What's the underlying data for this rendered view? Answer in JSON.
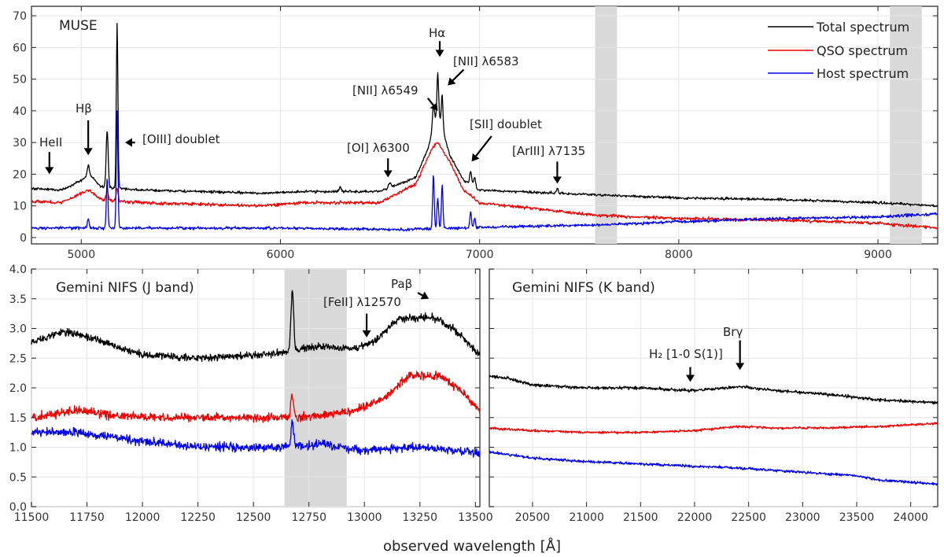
{
  "xlabel": "observed wavelength [Å]",
  "colors": {
    "total": "#000000",
    "qso": "#ee0000",
    "host": "#0000ee",
    "shade": "#d9d9d9",
    "grid": "#ffffff",
    "bg": "#ffffff"
  },
  "chart_data": [
    {
      "id": "muse",
      "type": "line",
      "title": "MUSE",
      "xlim": [
        4750,
        9300
      ],
      "ylim": [
        -2,
        73
      ],
      "xticks": [
        5000,
        6000,
        7000,
        8000,
        9000
      ],
      "yticks": [
        0,
        10,
        20,
        30,
        40,
        50,
        60,
        70
      ],
      "shaded": [
        [
          7580,
          7690
        ],
        [
          9060,
          9220
        ]
      ],
      "legend": {
        "position": "top-right",
        "entries": [
          {
            "key": "total",
            "label": "Total spectrum"
          },
          {
            "key": "qso",
            "label": "QSO spectrum"
          },
          {
            "key": "host",
            "label": "Host spectrum"
          }
        ]
      },
      "series": [
        {
          "name": "Total spectrum",
          "key": "total",
          "anchors": [
            [
              4750,
              15.5
            ],
            [
              4900,
              15
            ],
            [
              5000,
              18
            ],
            [
              5040,
              20
            ],
            [
              5100,
              16
            ],
            [
              5300,
              15
            ],
            [
              5900,
              14
            ],
            [
              6100,
              14.5
            ],
            [
              6500,
              14.5
            ],
            [
              6680,
              19
            ],
            [
              6740,
              28
            ],
            [
              6790,
              40
            ],
            [
              6850,
              26
            ],
            [
              6920,
              18
            ],
            [
              7000,
              15
            ],
            [
              7600,
              13.5
            ],
            [
              8000,
              12.5
            ],
            [
              8500,
              12
            ],
            [
              9000,
              11
            ],
            [
              9300,
              10
            ]
          ],
          "lines": [
            [
              5035,
              3,
              5
            ],
            [
              5130,
              18,
              5
            ],
            [
              5180,
              52,
              4
            ],
            [
              6300,
              1.5,
              6
            ],
            [
              6549,
              1.5,
              6
            ],
            [
              6768,
              7,
              5
            ],
            [
              6790,
              12,
              4
            ],
            [
              6812,
              10,
              4
            ],
            [
              6955,
              4,
              5
            ],
            [
              6975,
              3,
              5
            ],
            [
              7390,
              1.5,
              5
            ]
          ],
          "noise": 0.4
        },
        {
          "name": "QSO spectrum",
          "key": "qso",
          "anchors": [
            [
              4750,
              11.5
            ],
            [
              4900,
              11
            ],
            [
              5000,
              14
            ],
            [
              5040,
              15
            ],
            [
              5100,
              12
            ],
            [
              5300,
              11
            ],
            [
              5900,
              10
            ],
            [
              6100,
              11
            ],
            [
              6500,
              11
            ],
            [
              6680,
              17
            ],
            [
              6760,
              28
            ],
            [
              6790,
              30
            ],
            [
              6850,
              24
            ],
            [
              6920,
              15
            ],
            [
              7000,
              11
            ],
            [
              7600,
              7
            ],
            [
              8000,
              6
            ],
            [
              8500,
              5.5
            ],
            [
              9000,
              4.5
            ],
            [
              9300,
              3
            ]
          ],
          "lines": [
            [
              5130,
              3,
              5
            ],
            [
              5180,
              4,
              5
            ]
          ],
          "noise": 0.5
        },
        {
          "name": "Host spectrum",
          "key": "host",
          "anchors": [
            [
              4750,
              3
            ],
            [
              5300,
              3
            ],
            [
              6000,
              3
            ],
            [
              6600,
              2.5
            ],
            [
              7200,
              3.5
            ],
            [
              7600,
              4
            ],
            [
              8000,
              5
            ],
            [
              8500,
              6
            ],
            [
              9000,
              6.5
            ],
            [
              9300,
              7.5
            ]
          ],
          "lines": [
            [
              5035,
              3,
              4
            ],
            [
              5130,
              16,
              4
            ],
            [
              5180,
              37,
              4
            ],
            [
              6768,
              17,
              4
            ],
            [
              6790,
              10,
              4
            ],
            [
              6812,
              14,
              4
            ],
            [
              6955,
              5,
              4
            ],
            [
              6975,
              3,
              4
            ]
          ],
          "noise": 0.45
        }
      ],
      "annotations": [
        {
          "text": "MUSE",
          "x": 4830,
          "y": 68,
          "role": "title"
        },
        {
          "text": "HeII",
          "x": 4800,
          "y": 30
        },
        {
          "text": "Hβ",
          "x": 5030,
          "y": 40
        },
        {
          "text": "[OIII] doublet",
          "x": 5290,
          "y": 30
        },
        {
          "text": "[OI] λ6300",
          "x": 6450,
          "y": 27
        },
        {
          "text": "Hα",
          "x": 6795,
          "y": 64
        },
        {
          "text": "[NII] λ6549",
          "x": 6560,
          "y": 46
        },
        {
          "text": "[NII] λ6583",
          "x": 6850,
          "y": 56
        },
        {
          "text": "[SII] doublet",
          "x": 6940,
          "y": 34
        },
        {
          "text": "[ArIII] λ7135",
          "x": 7180,
          "y": 27
        }
      ],
      "arrows": [
        {
          "from": [
            4840,
            27
          ],
          "to": [
            4840,
            20
          ],
          "label": "HeII"
        },
        {
          "from": [
            5035,
            37
          ],
          "to": [
            5035,
            26
          ],
          "label": "Hβ"
        },
        {
          "from": [
            5270,
            30
          ],
          "to": [
            5220,
            30
          ],
          "label": "[OIII] doublet"
        },
        {
          "from": [
            6540,
            25
          ],
          "to": [
            6540,
            19
          ],
          "label": "[OI] λ6300"
        },
        {
          "from": [
            6800,
            62
          ],
          "to": [
            6800,
            57
          ],
          "label": "Hα"
        },
        {
          "from": [
            6740,
            44
          ],
          "to": [
            6790,
            40
          ],
          "label": "[NII] λ6549"
        },
        {
          "from": [
            6920,
            53
          ],
          "to": [
            6840,
            48
          ],
          "label": "[NII] λ6583"
        },
        {
          "from": [
            7060,
            32
          ],
          "to": [
            6960,
            24
          ],
          "label": "[SII] doublet"
        },
        {
          "from": [
            7390,
            24
          ],
          "to": [
            7390,
            17
          ],
          "label": "[ArIII] λ7135"
        }
      ]
    },
    {
      "id": "nifs_j",
      "type": "line",
      "title": "Gemini NIFS (J band)",
      "xlim": [
        11500,
        13520
      ],
      "ylim": [
        0,
        4
      ],
      "xticks": [
        11500,
        11750,
        12000,
        12250,
        12500,
        12750,
        13000,
        13250,
        13500
      ],
      "yticks": [
        0.0,
        0.5,
        1.0,
        1.5,
        2.0,
        2.5,
        3.0,
        3.5,
        4.0
      ],
      "shaded": [
        [
          12640,
          12920
        ]
      ],
      "series": [
        {
          "name": "Total spectrum",
          "key": "total",
          "anchors": [
            [
              11500,
              2.78
            ],
            [
              11650,
              2.95
            ],
            [
              11800,
              2.8
            ],
            [
              12000,
              2.55
            ],
            [
              12250,
              2.5
            ],
            [
              12500,
              2.55
            ],
            [
              12650,
              2.6
            ],
            [
              12800,
              2.7
            ],
            [
              12950,
              2.65
            ],
            [
              13050,
              2.8
            ],
            [
              13150,
              3.15
            ],
            [
              13300,
              3.2
            ],
            [
              13400,
              3.0
            ],
            [
              13520,
              2.55
            ]
          ],
          "lines": [
            [
              12675,
              1.0,
              6
            ]
          ],
          "noise": 0.06
        },
        {
          "name": "QSO spectrum",
          "key": "qso",
          "anchors": [
            [
              11500,
              1.5
            ],
            [
              11700,
              1.62
            ],
            [
              11900,
              1.52
            ],
            [
              12250,
              1.5
            ],
            [
              12700,
              1.5
            ],
            [
              12950,
              1.6
            ],
            [
              13100,
              1.85
            ],
            [
              13200,
              2.2
            ],
            [
              13350,
              2.2
            ],
            [
              13450,
              1.9
            ],
            [
              13520,
              1.6
            ]
          ],
          "lines": [
            [
              12675,
              0.4,
              6
            ]
          ],
          "noise": 0.07
        },
        {
          "name": "Host spectrum",
          "key": "host",
          "anchors": [
            [
              11500,
              1.25
            ],
            [
              11700,
              1.25
            ],
            [
              11900,
              1.15
            ],
            [
              12250,
              1.0
            ],
            [
              12600,
              1.0
            ],
            [
              12800,
              1.05
            ],
            [
              13000,
              0.95
            ],
            [
              13250,
              1.0
            ],
            [
              13520,
              0.9
            ]
          ],
          "lines": [
            [
              12675,
              0.4,
              6
            ]
          ],
          "noise": 0.07
        }
      ],
      "annotations": [
        {
          "text": "Gemini NIFS (J band)",
          "role": "title"
        },
        {
          "text": "Paβ",
          "x": 13180,
          "y": 3.75
        },
        {
          "text": "[FeII] λ12570",
          "x": 12500,
          "y": 3.4
        }
      ],
      "arrows": [
        {
          "from": [
            13240,
            3.6
          ],
          "to": [
            13290,
            3.5
          ],
          "label": "Paβ"
        },
        {
          "from": [
            13010,
            3.25
          ],
          "to": [
            13010,
            2.85
          ],
          "label": "[FeII] λ12570"
        }
      ]
    },
    {
      "id": "nifs_k",
      "type": "line",
      "title": "Gemini NIFS (K band)",
      "xlim": [
        20100,
        24250
      ],
      "ylim": [
        0,
        4
      ],
      "xticks": [
        20500,
        21000,
        21500,
        22000,
        22500,
        23000,
        23500,
        24000
      ],
      "yticks": [
        0.0,
        0.5,
        1.0,
        1.5,
        2.0,
        2.5,
        3.0,
        3.5,
        4.0
      ],
      "shaded": [],
      "series": [
        {
          "name": "Total spectrum",
          "key": "total",
          "anchors": [
            [
              20100,
              2.2
            ],
            [
              20300,
              2.15
            ],
            [
              20500,
              2.05
            ],
            [
              21000,
              2.0
            ],
            [
              21500,
              2.0
            ],
            [
              22000,
              1.95
            ],
            [
              22400,
              2.02
            ],
            [
              22800,
              1.95
            ],
            [
              23300,
              1.88
            ],
            [
              23700,
              1.8
            ],
            [
              24250,
              1.75
            ]
          ],
          "lines": [],
          "noise": 0.025
        },
        {
          "name": "QSO spectrum",
          "key": "qso",
          "anchors": [
            [
              20100,
              1.32
            ],
            [
              20500,
              1.28
            ],
            [
              21000,
              1.25
            ],
            [
              21500,
              1.25
            ],
            [
              22000,
              1.28
            ],
            [
              22400,
              1.35
            ],
            [
              22800,
              1.32
            ],
            [
              23300,
              1.33
            ],
            [
              23700,
              1.35
            ],
            [
              24250,
              1.4
            ]
          ],
          "lines": [],
          "noise": 0.02
        },
        {
          "name": "Host spectrum",
          "key": "host",
          "anchors": [
            [
              20100,
              0.92
            ],
            [
              20500,
              0.82
            ],
            [
              21000,
              0.76
            ],
            [
              21500,
              0.72
            ],
            [
              22000,
              0.68
            ],
            [
              22500,
              0.64
            ],
            [
              23000,
              0.58
            ],
            [
              23500,
              0.52
            ],
            [
              23700,
              0.45
            ],
            [
              24250,
              0.38
            ]
          ],
          "lines": [],
          "noise": 0.022
        }
      ],
      "annotations": [
        {
          "text": "Gemini NIFS (K band)",
          "role": "title"
        },
        {
          "text": "Brγ",
          "x": 22250,
          "y": 3.0
        },
        {
          "text": "H₂ [1-0 S(1)]",
          "x": 21800,
          "y": 2.55
        }
      ],
      "arrows": [
        {
          "from": [
            22420,
            2.8
          ],
          "to": [
            22420,
            2.3
          ],
          "label": "Brγ"
        },
        {
          "from": [
            21960,
            2.35
          ],
          "to": [
            21960,
            2.1
          ],
          "label": "H₂ [1-0 S(1)]"
        }
      ]
    }
  ]
}
